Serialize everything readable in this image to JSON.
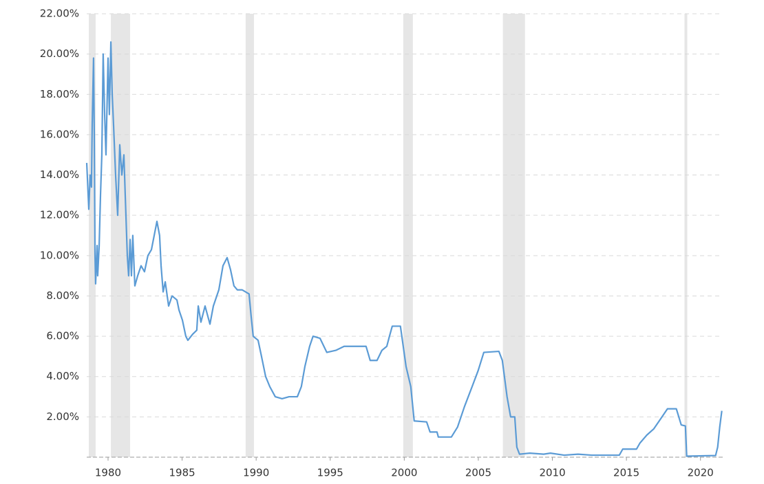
{
  "chart_data": {
    "type": "line",
    "xlim": [
      1978.56,
      2021.5
    ],
    "ylim": [
      0,
      22
    ],
    "xticks": [
      1980,
      1985,
      1990,
      1995,
      2000,
      2005,
      2010,
      2015,
      2020
    ],
    "yticks": [
      {
        "value": 2,
        "label": "2.00%"
      },
      {
        "value": 4,
        "label": "4.00%"
      },
      {
        "value": 6,
        "label": "6.00%"
      },
      {
        "value": 8,
        "label": "8.00%"
      },
      {
        "value": 10,
        "label": "10.00%"
      },
      {
        "value": 12,
        "label": "12.00%"
      },
      {
        "value": 14,
        "label": "14.00%"
      },
      {
        "value": 16,
        "label": "16.00%"
      },
      {
        "value": 18,
        "label": "18.00%"
      },
      {
        "value": 20,
        "label": "20.00%"
      },
      {
        "value": 22,
        "label": "22.00%"
      }
    ],
    "grid": true,
    "recession_color": "#e6e6e6",
    "recessions": [
      [
        1978.7,
        1979.16
      ],
      [
        1980.19,
        1981.49
      ],
      [
        1989.29,
        1989.85
      ],
      [
        1999.93,
        2000.58
      ],
      [
        2006.66,
        2008.15
      ],
      [
        2018.92,
        2019.11
      ]
    ],
    "x": [
      1978.56,
      1978.7,
      1978.79,
      1978.88,
      1978.93,
      1979.02,
      1979.07,
      1979.12,
      1979.16,
      1979.26,
      1979.3,
      1979.4,
      1979.49,
      1979.58,
      1979.67,
      1979.77,
      1979.86,
      1980.0,
      1980.09,
      1980.19,
      1980.28,
      1980.37,
      1980.51,
      1980.65,
      1980.79,
      1980.93,
      1981.07,
      1981.16,
      1981.3,
      1981.39,
      1981.49,
      1981.58,
      1981.67,
      1981.81,
      1982.0,
      1982.23,
      1982.46,
      1982.69,
      1982.93,
      1983.3,
      1983.48,
      1983.58,
      1983.72,
      1983.86,
      1984.09,
      1984.32,
      1984.65,
      1984.79,
      1985.02,
      1985.25,
      1985.39,
      1985.71,
      1985.99,
      1986.09,
      1986.27,
      1986.55,
      1986.88,
      1987.11,
      1987.48,
      1987.76,
      1988.04,
      1988.27,
      1988.5,
      1988.73,
      1989.06,
      1989.52,
      1989.66,
      1989.8,
      1990.13,
      1990.36,
      1990.64,
      1990.92,
      1991.29,
      1991.75,
      1992.22,
      1992.78,
      1993.05,
      1993.29,
      1993.61,
      1993.84,
      1994.31,
      1994.77,
      1995.38,
      1995.94,
      1996.86,
      1997.42,
      1997.7,
      1998.16,
      1998.49,
      1998.82,
      1999.0,
      1999.19,
      1999.74,
      1999.93,
      2000.12,
      2000.44,
      2000.67,
      2001.51,
      2001.74,
      2002.21,
      2002.3,
      2003.18,
      2003.6,
      2004.06,
      2004.58,
      2004.99,
      2005.37,
      2006.39,
      2006.62,
      2006.94,
      2007.18,
      2007.46,
      2007.6,
      2007.78,
      2008.48,
      2009.41,
      2009.87,
      2010.8,
      2011.73,
      2012.66,
      2014.52,
      2014.75,
      2015.68,
      2015.91,
      2016.38,
      2016.84,
      2017.31,
      2017.77,
      2018.37,
      2018.7,
      2018.98,
      2019.07,
      2021.02,
      2021.16,
      2021.3,
      2021.44
    ],
    "series": [
      {
        "color": "#5b9bd5",
        "values": [
          14.6,
          12.3,
          14.0,
          13.4,
          16.5,
          19.8,
          16.0,
          10.0,
          8.6,
          10.5,
          9.0,
          10.5,
          13.0,
          15.0,
          20.0,
          17.0,
          15.0,
          19.8,
          17.0,
          20.6,
          18.0,
          16.5,
          14.0,
          12.0,
          15.5,
          14.0,
          15.0,
          13.0,
          10.0,
          9.0,
          10.8,
          9.0,
          11.0,
          8.5,
          9.0,
          9.5,
          9.2,
          10.0,
          10.3,
          11.7,
          11.0,
          9.5,
          8.2,
          8.7,
          7.5,
          8.0,
          7.8,
          7.3,
          6.8,
          6.0,
          5.8,
          6.1,
          6.3,
          7.5,
          6.7,
          7.5,
          6.6,
          7.5,
          8.3,
          9.5,
          9.9,
          9.3,
          8.5,
          8.3,
          8.3,
          8.1,
          7.0,
          6.0,
          5.8,
          5.0,
          4.0,
          3.5,
          3.0,
          2.9,
          3.0,
          3.0,
          3.5,
          4.5,
          5.5,
          6.0,
          5.9,
          5.2,
          5.3,
          5.5,
          5.5,
          5.5,
          4.8,
          4.8,
          5.3,
          5.5,
          6.0,
          6.5,
          6.5,
          5.5,
          4.5,
          3.5,
          1.8,
          1.75,
          1.25,
          1.25,
          1.0,
          1.0,
          1.5,
          2.5,
          3.5,
          4.3,
          5.2,
          5.25,
          4.8,
          3.0,
          2.0,
          2.0,
          0.5,
          0.15,
          0.2,
          0.15,
          0.2,
          0.1,
          0.15,
          0.1,
          0.1,
          0.4,
          0.4,
          0.7,
          1.1,
          1.4,
          1.9,
          2.4,
          2.4,
          1.6,
          1.55,
          0.05,
          0.08,
          0.5,
          1.5,
          2.3
        ]
      }
    ]
  }
}
